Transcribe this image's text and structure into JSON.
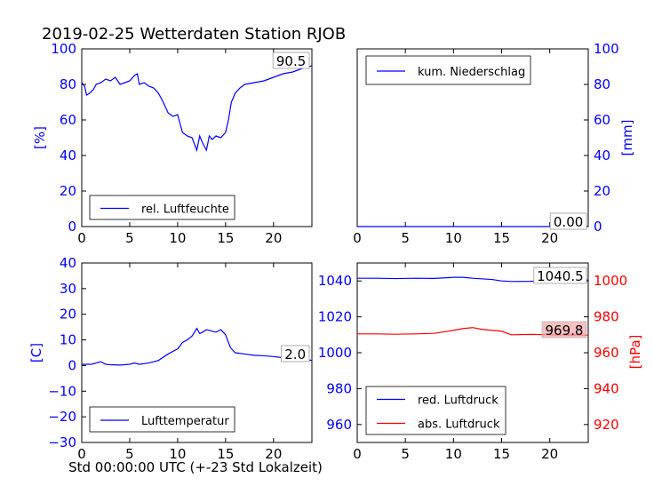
{
  "title": "2019-02-25 Wetterdaten Station RJOB",
  "xlabel": "Std 00:00:00 UTC (+-23 Std Lokalzeit)",
  "colors": {
    "blue": "#0000ff",
    "red": "#ff0000",
    "axis": "#000000"
  },
  "panels": {
    "humidity": {
      "ylabel": "[%]",
      "legend": "rel. Luftfeuchte",
      "last_value": "90.5",
      "yticks": [
        "0",
        "20",
        "40",
        "60",
        "80",
        "100"
      ],
      "xticks": [
        "0",
        "5",
        "10",
        "15",
        "20"
      ]
    },
    "precip": {
      "ylabel": "[mm]",
      "legend": "kum. Niederschlag",
      "last_value": "0.00",
      "yticks": [
        "0",
        "20",
        "40",
        "60",
        "80",
        "100"
      ],
      "xticks": [
        "0",
        "5",
        "10",
        "15",
        "20"
      ]
    },
    "temperature": {
      "ylabel": "[C]",
      "legend": "Lufttemperatur",
      "last_value": "2.0",
      "yticks": [
        "−30",
        "−20",
        "−10",
        "0",
        "10",
        "20",
        "30",
        "40"
      ],
      "xticks": [
        "0",
        "5",
        "10",
        "15",
        "20"
      ]
    },
    "pressure": {
      "ylabel_right": "[hPa]",
      "legend_red": "red. Luftdruck",
      "legend_abs": "abs. Luftdruck",
      "last_value_red": "1040.5",
      "last_value_abs": "969.8",
      "yticks_left": [
        "960",
        "980",
        "1000",
        "1020",
        "1040"
      ],
      "yticks_right": [
        "920",
        "940",
        "960",
        "980",
        "1000"
      ],
      "xticks": [
        "0",
        "5",
        "10",
        "15",
        "20"
      ]
    }
  },
  "chart_data": [
    {
      "type": "line",
      "title": "2019-02-25 Wetterdaten Station RJOB",
      "xlabel": "",
      "ylabel": "[%]",
      "xlim": [
        0,
        24
      ],
      "ylim": [
        0,
        100
      ],
      "legend_position": "lower-left",
      "series": [
        {
          "name": "rel. Luftfeuchte",
          "color": "#0000ff",
          "x": [
            0,
            0.3,
            0.5,
            0.8,
            1.2,
            1.5,
            2,
            2.5,
            3,
            3.5,
            4,
            4.5,
            5,
            5.5,
            5.8,
            6,
            6.5,
            7,
            7.5,
            8,
            8.5,
            9,
            9.5,
            10,
            10.5,
            11,
            11.5,
            12,
            12.3,
            12.6,
            13,
            13.3,
            13.6,
            14,
            14.5,
            15,
            15.3,
            15.6,
            16,
            16.5,
            17,
            18,
            19,
            20,
            21,
            22,
            23,
            24
          ],
          "y": [
            81,
            79,
            74,
            75,
            77,
            80,
            81,
            83,
            82,
            84,
            80,
            81,
            82,
            85,
            86,
            80,
            81,
            79,
            78,
            75,
            70,
            64,
            62,
            63,
            53,
            51,
            50,
            43,
            51,
            47,
            43,
            51,
            49,
            51,
            50,
            53,
            60,
            70,
            75,
            78,
            80,
            81,
            82,
            84,
            86,
            87,
            89,
            90.5
          ]
        }
      ]
    },
    {
      "type": "line",
      "xlabel": "",
      "ylabel": "[mm]",
      "xlim": [
        0,
        24
      ],
      "ylim": [
        0,
        100
      ],
      "legend_position": "upper-left",
      "series": [
        {
          "name": "kum. Niederschlag",
          "color": "#0000ff",
          "x": [
            0,
            24
          ],
          "y": [
            0,
            0
          ]
        }
      ]
    },
    {
      "type": "line",
      "xlabel": "Std 00:00:00 UTC (+-23 Std Lokalzeit)",
      "ylabel": "[C]",
      "xlim": [
        0,
        24
      ],
      "ylim": [
        -30,
        40
      ],
      "legend_position": "lower-left",
      "series": [
        {
          "name": "Lufttemperatur",
          "color": "#0000ff",
          "x": [
            0,
            1,
            2,
            2.5,
            3,
            4,
            5,
            5.5,
            6,
            7,
            8,
            9,
            10,
            10.5,
            11,
            11.5,
            12,
            12.3,
            12.6,
            13,
            13.5,
            14,
            14.5,
            15,
            15.5,
            16,
            17,
            18,
            19,
            20,
            21,
            22,
            23,
            24
          ],
          "y": [
            0.5,
            0.5,
            1.5,
            0.5,
            0.3,
            0.2,
            0.5,
            1,
            0.5,
            1,
            2,
            4.5,
            6.5,
            9,
            10,
            11.5,
            14.5,
            12.5,
            13,
            14,
            13.5,
            13,
            14,
            12,
            7,
            5,
            4.5,
            4,
            3.8,
            3.5,
            3,
            2.8,
            2.5,
            2.0
          ]
        }
      ]
    },
    {
      "type": "line",
      "xlabel": "",
      "ylabel_left": "",
      "ylabel_right": "[hPa]",
      "xlim": [
        0,
        24
      ],
      "ylim_left": [
        950,
        1050
      ],
      "ylim_right": [
        910,
        1010
      ],
      "legend_position": "lower-left",
      "series": [
        {
          "name": "red. Luftdruck",
          "color": "#0000ff",
          "axis": "left",
          "x": [
            0,
            2,
            4,
            6,
            8,
            10,
            11,
            12,
            14,
            15,
            16,
            18,
            20,
            22,
            24
          ],
          "y": [
            1041.5,
            1041.5,
            1041.3,
            1041.5,
            1041.4,
            1042,
            1042,
            1041.5,
            1040.8,
            1040,
            1039.7,
            1039.8,
            1040.2,
            1040.4,
            1040.5
          ]
        },
        {
          "name": "abs. Luftdruck",
          "color": "#ff0000",
          "axis": "right",
          "x": [
            0,
            2,
            4,
            6,
            8,
            10,
            11,
            12,
            13,
            14,
            15,
            16,
            18,
            20,
            22,
            24
          ],
          "y": [
            970.5,
            970.5,
            970.3,
            970.5,
            970.8,
            972.5,
            973.5,
            974,
            973,
            972.5,
            972,
            970,
            970.2,
            970,
            969.9,
            969.8
          ]
        }
      ]
    }
  ]
}
